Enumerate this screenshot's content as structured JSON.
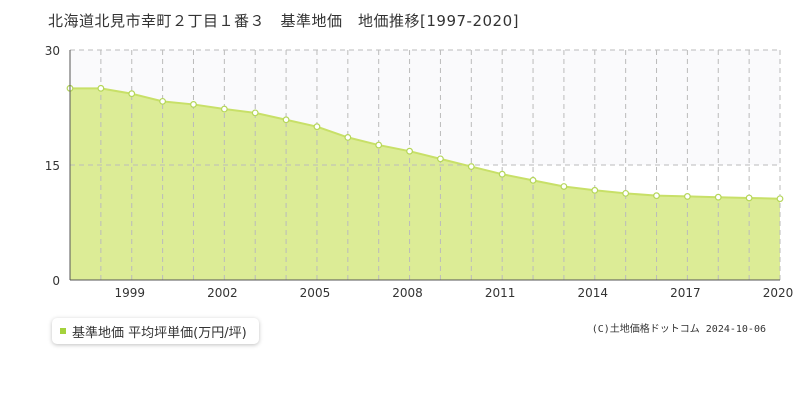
{
  "title": "北海道北見市幸町２丁目１番３　基準地価　地価推移[1997-2020]",
  "legend": {
    "label": "基準地価 平均坪単価(万円/坪)"
  },
  "credit": "(C)土地価格ドットコム 2024-10-06",
  "colors": {
    "area_fill": "#dcec96",
    "line": "#c8e068",
    "marker_fill": "#ffffff",
    "marker_stroke": "#b5d65a",
    "legend_swatch": "#a4d23c",
    "grid": "#bbbbbb",
    "upper_band": "#fafafc",
    "axis_text": "#333333"
  },
  "chart_data": {
    "type": "area",
    "x": [
      1997,
      1998,
      1999,
      2000,
      2001,
      2002,
      2003,
      2004,
      2005,
      2006,
      2007,
      2008,
      2009,
      2010,
      2011,
      2012,
      2013,
      2014,
      2015,
      2016,
      2017,
      2018,
      2019,
      2020
    ],
    "series": [
      {
        "name": "基準地価 平均坪単価(万円/坪)",
        "values": [
          25.0,
          25.0,
          24.3,
          23.3,
          22.9,
          22.3,
          21.8,
          20.9,
          20.0,
          18.6,
          17.6,
          16.8,
          15.8,
          14.8,
          13.8,
          13.0,
          12.2,
          11.7,
          11.3,
          11.0,
          10.9,
          10.8,
          10.7,
          10.6
        ]
      }
    ],
    "x_tick_labels": [
      "1999",
      "2002",
      "2005",
      "2008",
      "2011",
      "2014",
      "2017",
      "2020"
    ],
    "y_ticks": [
      0,
      15,
      30
    ],
    "ylim": [
      0,
      30
    ],
    "xlim": [
      1997,
      2020
    ],
    "grid": true
  }
}
